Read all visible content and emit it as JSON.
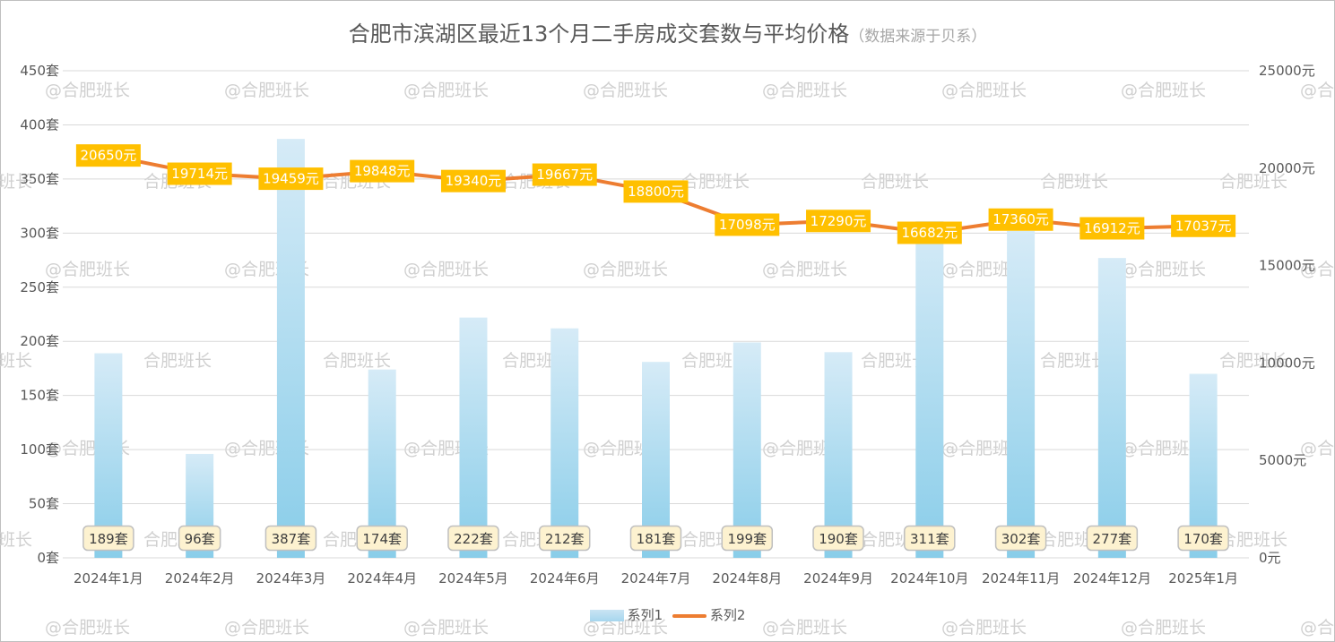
{
  "title": "合肥市滨湖区最近13个月二手房成交套数与平均价格",
  "subtitle": "（数据来源于贝系）",
  "watermark": "@合肥班长",
  "colors": {
    "bar_top": "#d6ebf7",
    "bar_bottom": "#89cde9",
    "line": "#ed7d31",
    "line_label_bg": "#ffc000",
    "bar_label_bg": "#fdf2d0",
    "bar_label_border": "#bfbfbf",
    "grid": "#d9d9d9"
  },
  "chart_data": {
    "type": "bar+line",
    "categories": [
      "2024年1月",
      "2024年2月",
      "2024年3月",
      "2024年4月",
      "2024年5月",
      "2024年6月",
      "2024年7月",
      "2024年8月",
      "2024年9月",
      "2024年10月",
      "2024年11月",
      "2024年12月",
      "2025年1月"
    ],
    "series": [
      {
        "name": "系列1",
        "type": "bar",
        "axis": "left",
        "values": [
          189,
          96,
          387,
          174,
          222,
          212,
          181,
          199,
          190,
          311,
          302,
          277,
          170
        ],
        "labels": [
          "189套",
          "96套",
          "387套",
          "174套",
          "222套",
          "212套",
          "181套",
          "199套",
          "190套",
          "311套",
          "302套",
          "277套",
          "170套"
        ]
      },
      {
        "name": "系列2",
        "type": "line",
        "axis": "right",
        "values": [
          20650,
          19714,
          19459,
          19848,
          19340,
          19667,
          18800,
          17098,
          17290,
          16682,
          17360,
          16912,
          17037
        ],
        "labels": [
          "20650元",
          "19714元",
          "19459元",
          "19848元",
          "19340元",
          "19667元",
          "18800元",
          "17098元",
          "17290元",
          "16682元",
          "17360元",
          "16912元",
          "17037元"
        ]
      }
    ],
    "y_left": {
      "range": [
        0,
        450
      ],
      "ticks": [
        "0套",
        "50套",
        "100套",
        "150套",
        "200套",
        "250套",
        "300套",
        "350套",
        "400套",
        "450套"
      ]
    },
    "y_right": {
      "range": [
        0,
        25000
      ],
      "ticks": [
        "0元",
        "5000元",
        "10000元",
        "15000元",
        "20000元",
        "25000元"
      ]
    },
    "grid": true,
    "legend": "bottom"
  }
}
